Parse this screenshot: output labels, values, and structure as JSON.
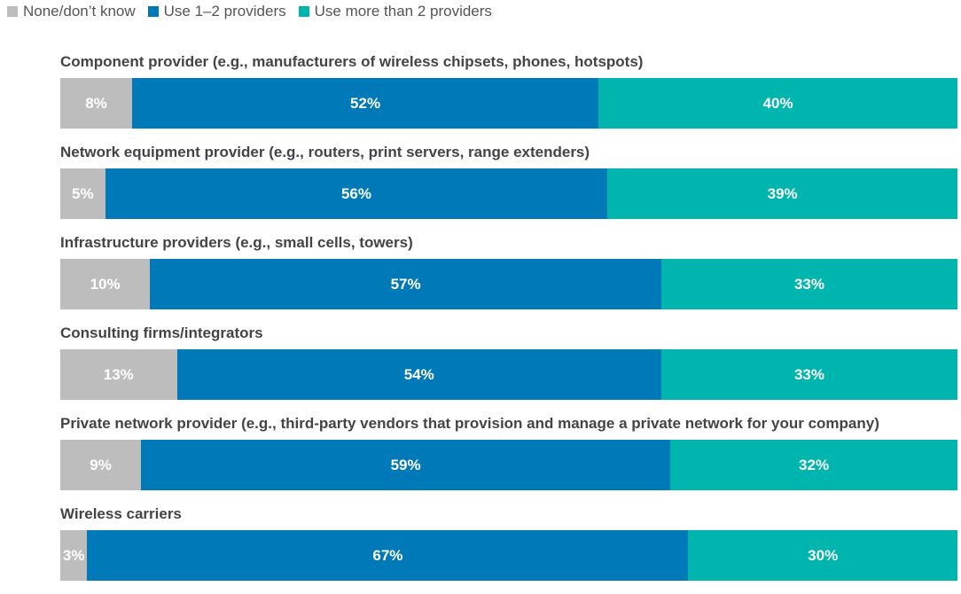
{
  "chart_data": {
    "type": "stacked-bar",
    "orientation": "horizontal",
    "categories": [
      "Component provider (e.g., manufacturers of wireless chipsets, phones, hotspots)",
      "Network equipment provider (e.g., routers, print servers, range extenders)",
      "Infrastructure providers (e.g., small cells, towers)",
      "Consulting firms/integrators",
      "Private network provider (e.g., third-party vendors that provision and manage a private network for your company)",
      "Wireless carriers"
    ],
    "xlim": [
      0,
      100
    ],
    "series": [
      {
        "name": "None/don’t know",
        "color": "#bdbdbd",
        "values": [
          8,
          5,
          10,
          13,
          9,
          3
        ],
        "value_labels": [
          "8%",
          "5%",
          "10%",
          "13%",
          "9%",
          "3%"
        ]
      },
      {
        "name": "Use 1–2 providers",
        "color": "#0079b8",
        "values": [
          52,
          56,
          57,
          54,
          59,
          67
        ],
        "value_labels": [
          "52%",
          "56%",
          "57%",
          "54%",
          "59%",
          "67%"
        ]
      },
      {
        "name": "Use more than 2 providers",
        "color": "#00b5ad",
        "values": [
          40,
          39,
          33,
          33,
          32,
          30
        ],
        "value_labels": [
          "40%",
          "39%",
          "33%",
          "33%",
          "32%",
          "30%"
        ]
      }
    ],
    "legend": "top-left"
  }
}
